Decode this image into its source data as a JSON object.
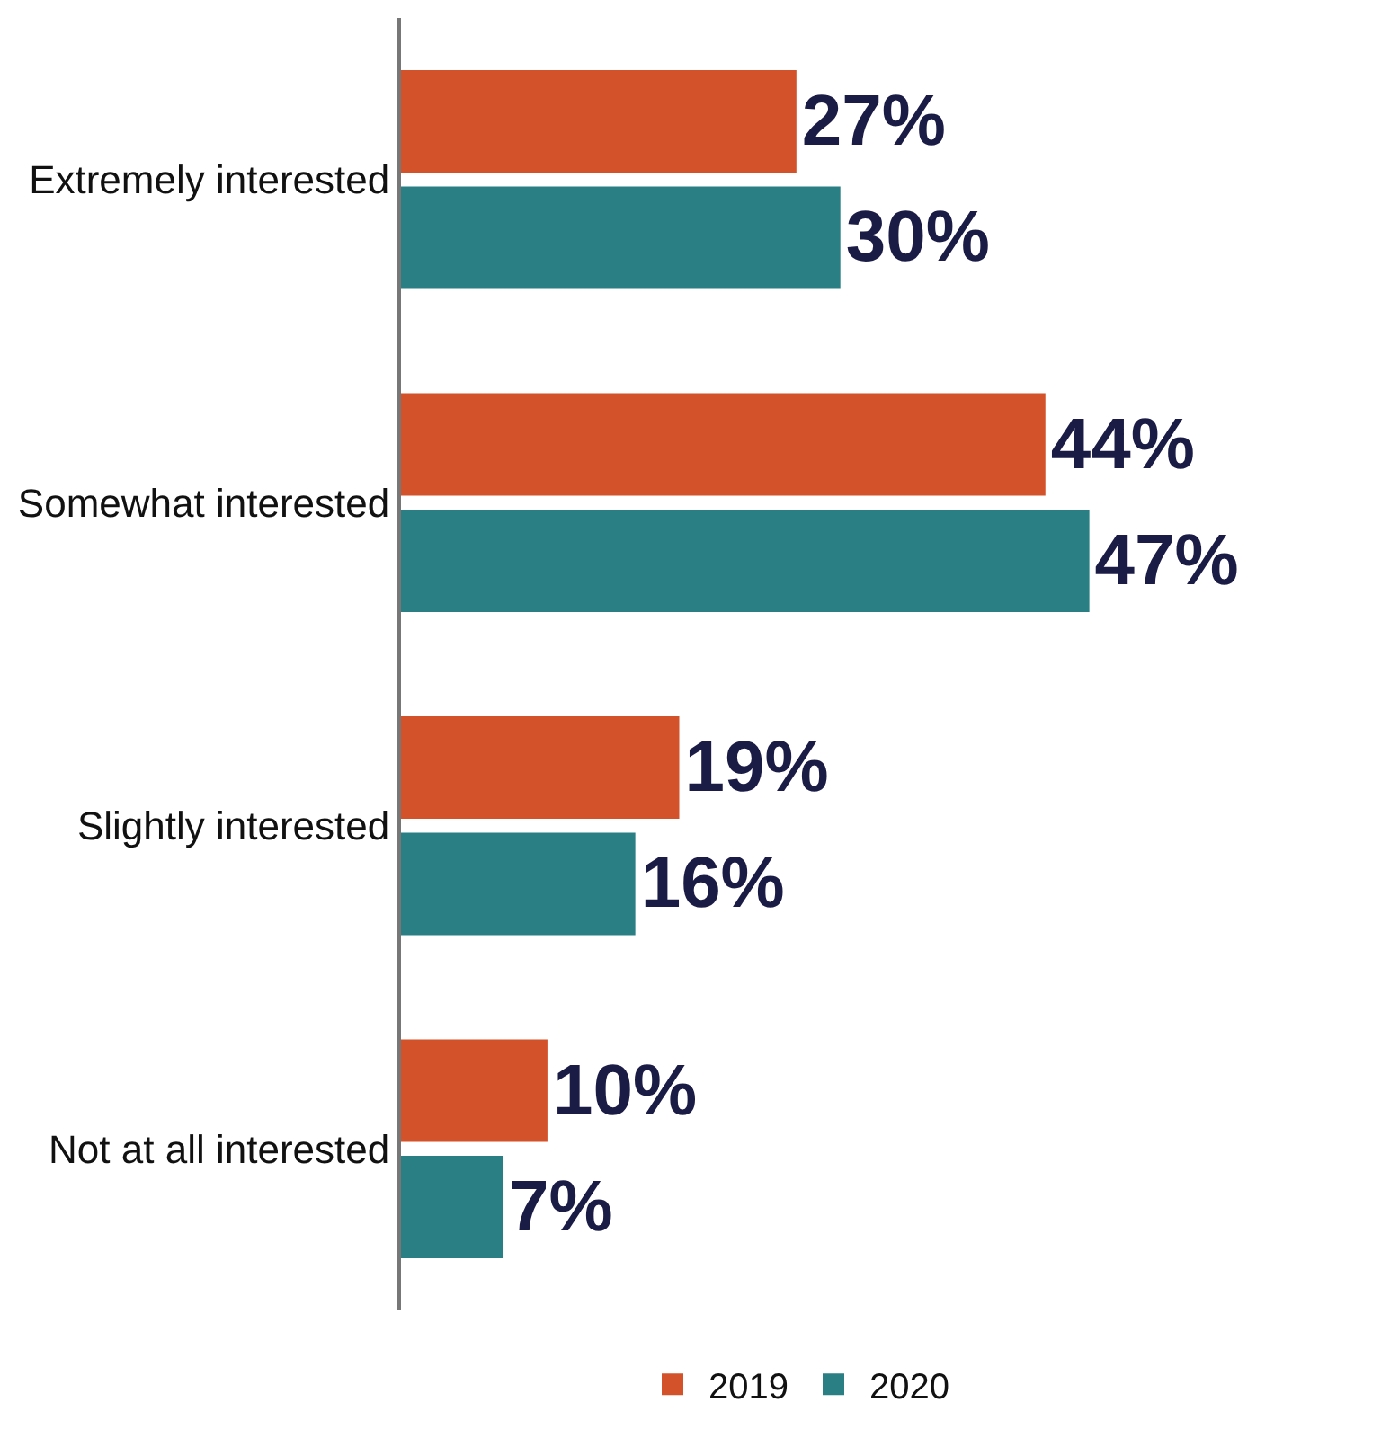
{
  "chart_data": {
    "type": "bar",
    "orientation": "horizontal",
    "categories": [
      "Extremely interested",
      "Somewhat interested",
      "Slightly interested",
      "Not at all interested"
    ],
    "series": [
      {
        "name": "2019",
        "color": "#d4522a",
        "values": [
          27,
          44,
          19,
          10
        ],
        "value_labels": [
          "27%",
          "44%",
          "19%",
          "10%"
        ]
      },
      {
        "name": "2020",
        "color": "#2a7f84",
        "values": [
          30,
          47,
          16,
          7
        ],
        "value_labels": [
          "30%",
          "47%",
          "16%",
          "7%"
        ]
      }
    ],
    "legend": "bottom",
    "tick_labels": "y"
  }
}
